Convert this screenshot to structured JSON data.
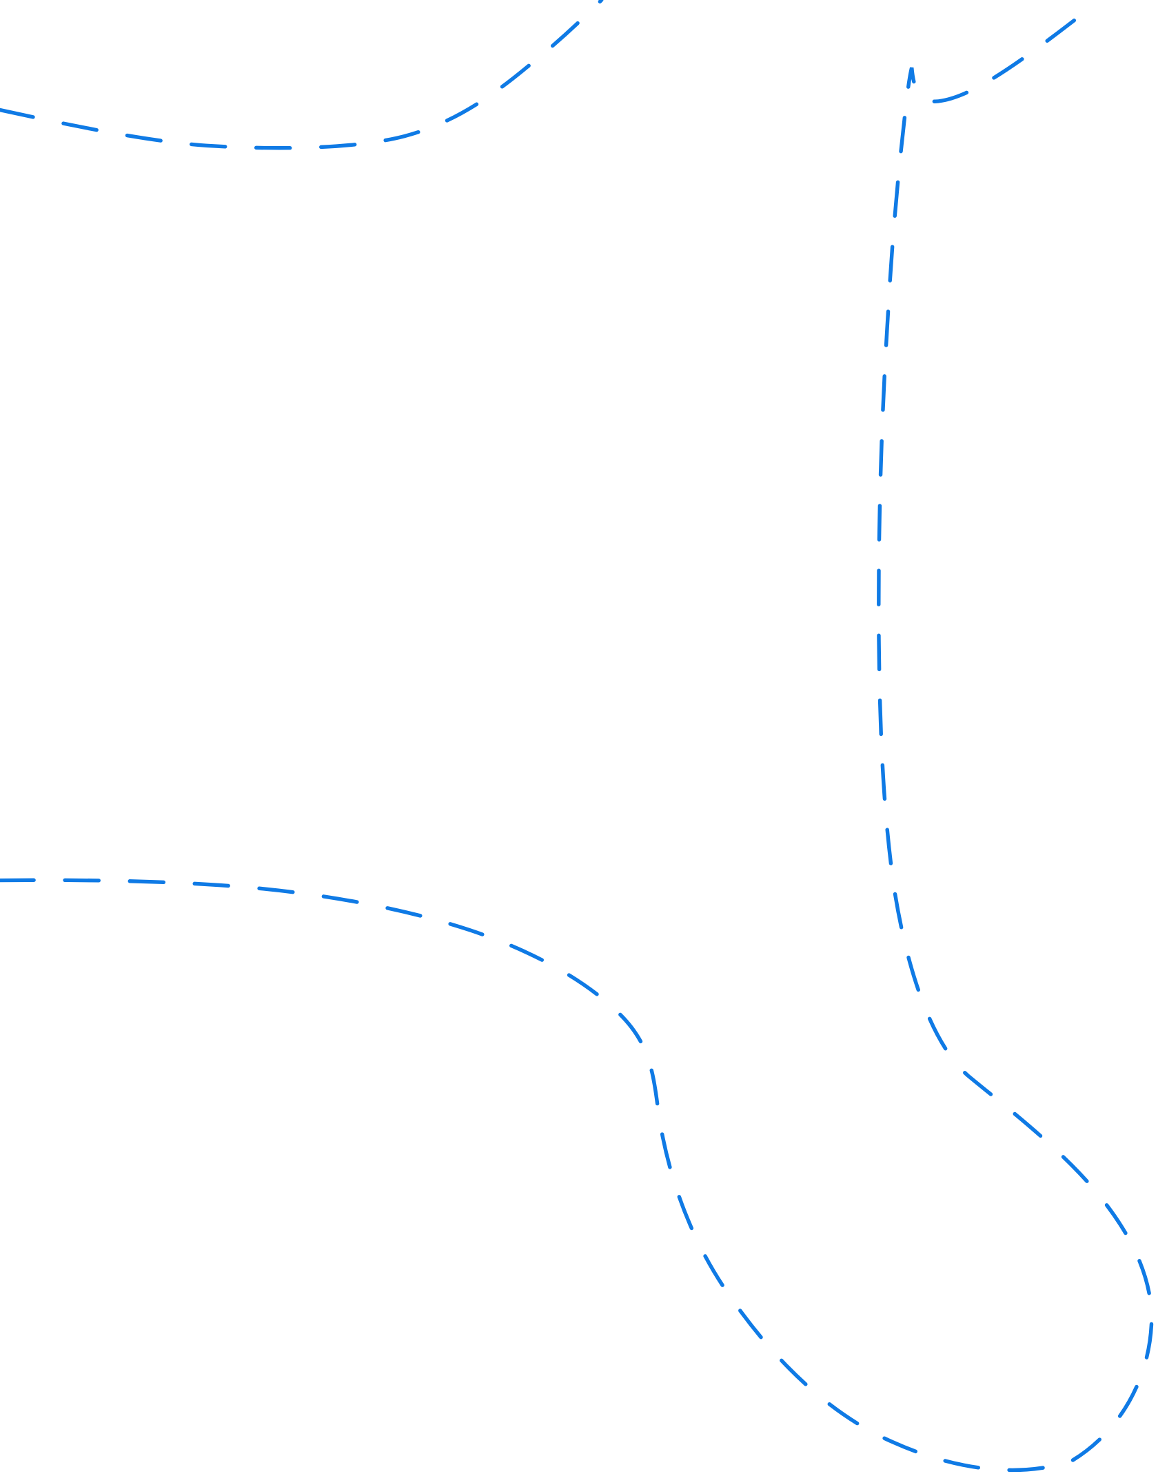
{
  "colors": {
    "background": "#ffffff",
    "stroke": "#0f7ae5"
  },
  "line_style": "dashed"
}
